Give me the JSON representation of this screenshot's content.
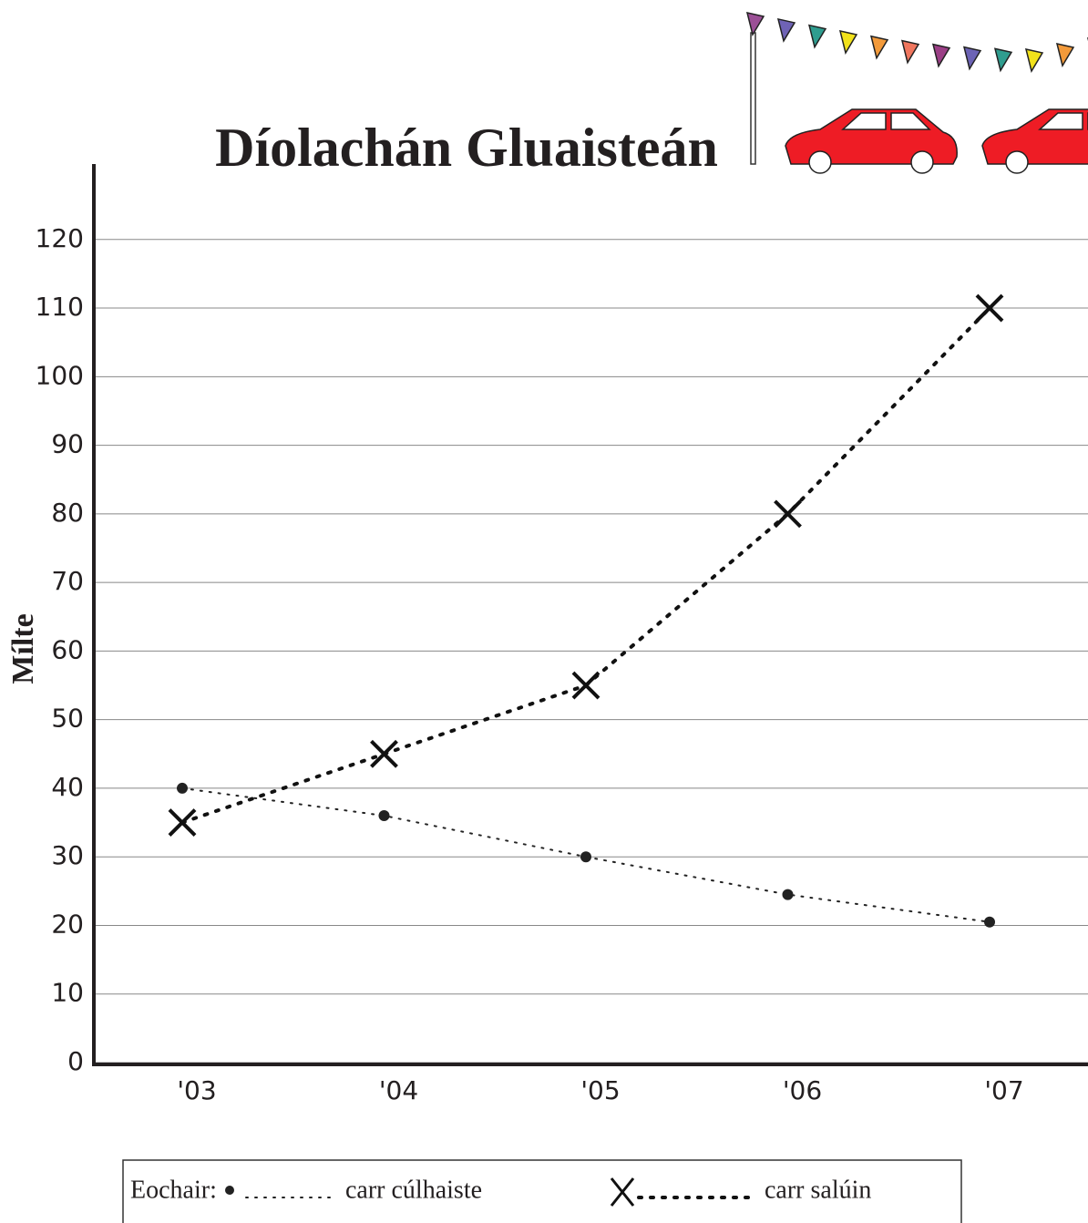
{
  "chart_data": {
    "type": "line",
    "title": "Díolachán Gluaisteán",
    "y_label": "Mílte",
    "categories": [
      "'03",
      "'04",
      "'05",
      "'06",
      "'07"
    ],
    "series": [
      {
        "name": "carr cúlhaiste",
        "color": "#222222",
        "marker": "dot",
        "line_width": 2,
        "values": [
          40,
          36,
          30,
          24.5,
          20.5
        ]
      },
      {
        "name": "carr salúin",
        "color": "#111111",
        "marker": "x",
        "line_width": 4,
        "values": [
          35,
          45,
          55,
          80,
          110
        ]
      }
    ],
    "ylim": [
      0,
      131
    ],
    "yticks": [
      0,
      10,
      20,
      30,
      40,
      50,
      60,
      70,
      80,
      90,
      100,
      110,
      120
    ],
    "grid": true,
    "legend_title": "Eochair:",
    "legend": "bottom"
  }
}
